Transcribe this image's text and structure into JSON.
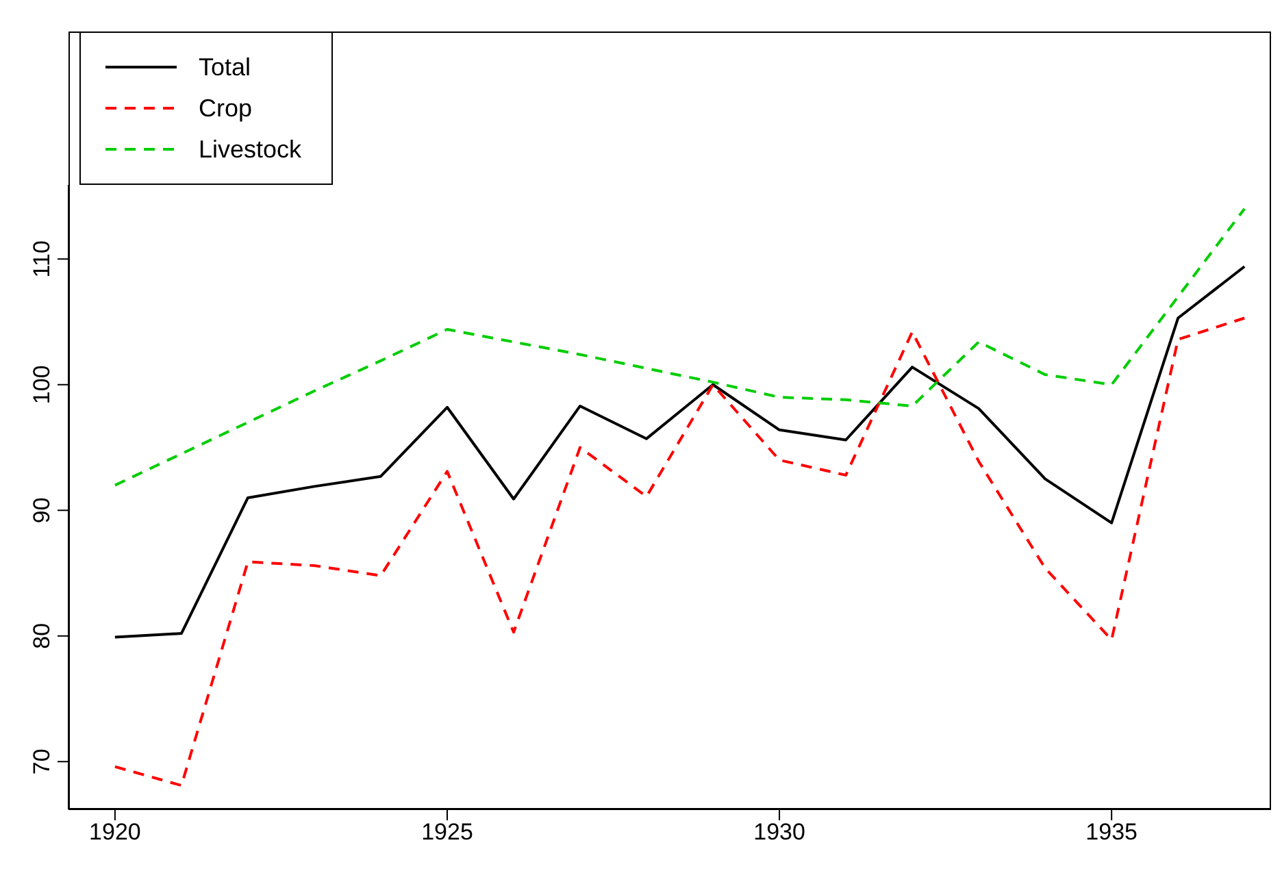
{
  "chart_data": {
    "type": "line",
    "x": [
      1920,
      1921,
      1922,
      1923,
      1924,
      1925,
      1926,
      1927,
      1928,
      1929,
      1930,
      1931,
      1932,
      1933,
      1934,
      1935,
      1936,
      1937
    ],
    "series": [
      {
        "name": "Total",
        "color": "#000000",
        "line_style": "solid",
        "values": [
          79.9,
          80.2,
          91.0,
          91.9,
          92.7,
          98.2,
          90.9,
          98.3,
          95.7,
          100.0,
          96.4,
          95.6,
          101.4,
          98.1,
          92.5,
          89.0,
          105.3,
          109.4
        ]
      },
      {
        "name": "Crop",
        "color": "#ff0000",
        "line_style": "dashed",
        "values": [
          69.6,
          68.1,
          85.9,
          85.6,
          84.8,
          93.1,
          80.3,
          95.0,
          91.1,
          100.0,
          94.0,
          92.8,
          104.2,
          93.9,
          85.4,
          79.7,
          103.6,
          105.3
        ]
      },
      {
        "name": "Livestock",
        "color": "#00cd00",
        "line_style": "dashed",
        "values": [
          92.0,
          94.5,
          97.0,
          99.5,
          101.9,
          104.4,
          103.4,
          102.4,
          101.3,
          100.2,
          99.0,
          98.8,
          98.3,
          103.4,
          100.8,
          100.0,
          107.0,
          114.0
        ]
      }
    ],
    "xlim": [
      1919.3,
      1937.4
    ],
    "xticks": [
      1920,
      1925,
      1930,
      1935
    ],
    "ylim": [
      66.2,
      115.9
    ],
    "yticks": [
      70,
      80,
      90,
      100,
      110
    ],
    "legend": "top left",
    "grid": false,
    "marker": "none"
  }
}
